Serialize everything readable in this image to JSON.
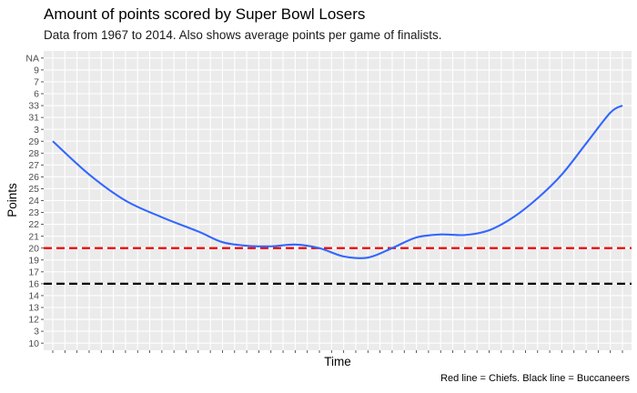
{
  "chart_data": {
    "type": "line",
    "title": "Amount of points scored by Super Bowl Losers",
    "subtitle": "Data from 1967 to 2014. Also shows average points per game of finalists.",
    "caption": "Red line = Chiefs.  Black line = Buccaneers",
    "xlabel": "Time",
    "ylabel": "Points",
    "y_ticks": [
      "10",
      "3",
      "12",
      "13",
      "14",
      "16",
      "17",
      "19",
      "20",
      "21",
      "22",
      "23",
      "24",
      "25",
      "26",
      "27",
      "28",
      "29",
      "3",
      "31",
      "33",
      "6",
      "7",
      "9",
      "NA"
    ],
    "x_count": 48,
    "smooth_curve": [
      {
        "x": 0,
        "y": 29
      },
      {
        "x": 3,
        "y": 26.2
      },
      {
        "x": 6,
        "y": 24
      },
      {
        "x": 9,
        "y": 22.6
      },
      {
        "x": 12,
        "y": 21.4
      },
      {
        "x": 14,
        "y": 20.5
      },
      {
        "x": 16,
        "y": 20.2
      },
      {
        "x": 18,
        "y": 20.15
      },
      {
        "x": 20,
        "y": 20.3
      },
      {
        "x": 22,
        "y": 20
      },
      {
        "x": 24,
        "y": 19.3
      },
      {
        "x": 26,
        "y": 19.2
      },
      {
        "x": 28,
        "y": 20
      },
      {
        "x": 30,
        "y": 20.9
      },
      {
        "x": 32,
        "y": 21.15
      },
      {
        "x": 34,
        "y": 21.1
      },
      {
        "x": 36,
        "y": 21.5
      },
      {
        "x": 38,
        "y": 22.6
      },
      {
        "x": 40,
        "y": 24.2
      },
      {
        "x": 42,
        "y": 26.2
      },
      {
        "x": 44,
        "y": 28.8
      },
      {
        "x": 46,
        "y": 31.8
      },
      {
        "x": 47,
        "y": 33.3
      }
    ],
    "reference_lines": [
      {
        "team": "Chiefs",
        "y": 20,
        "color": "#ee0000"
      },
      {
        "team": "Buccaneers",
        "y": 16,
        "color": "#000000"
      }
    ],
    "colors": {
      "line": "#3366ff",
      "panel": "#ebebeb",
      "grid_major": "#ffffff"
    },
    "grid": true,
    "legend": "none"
  }
}
